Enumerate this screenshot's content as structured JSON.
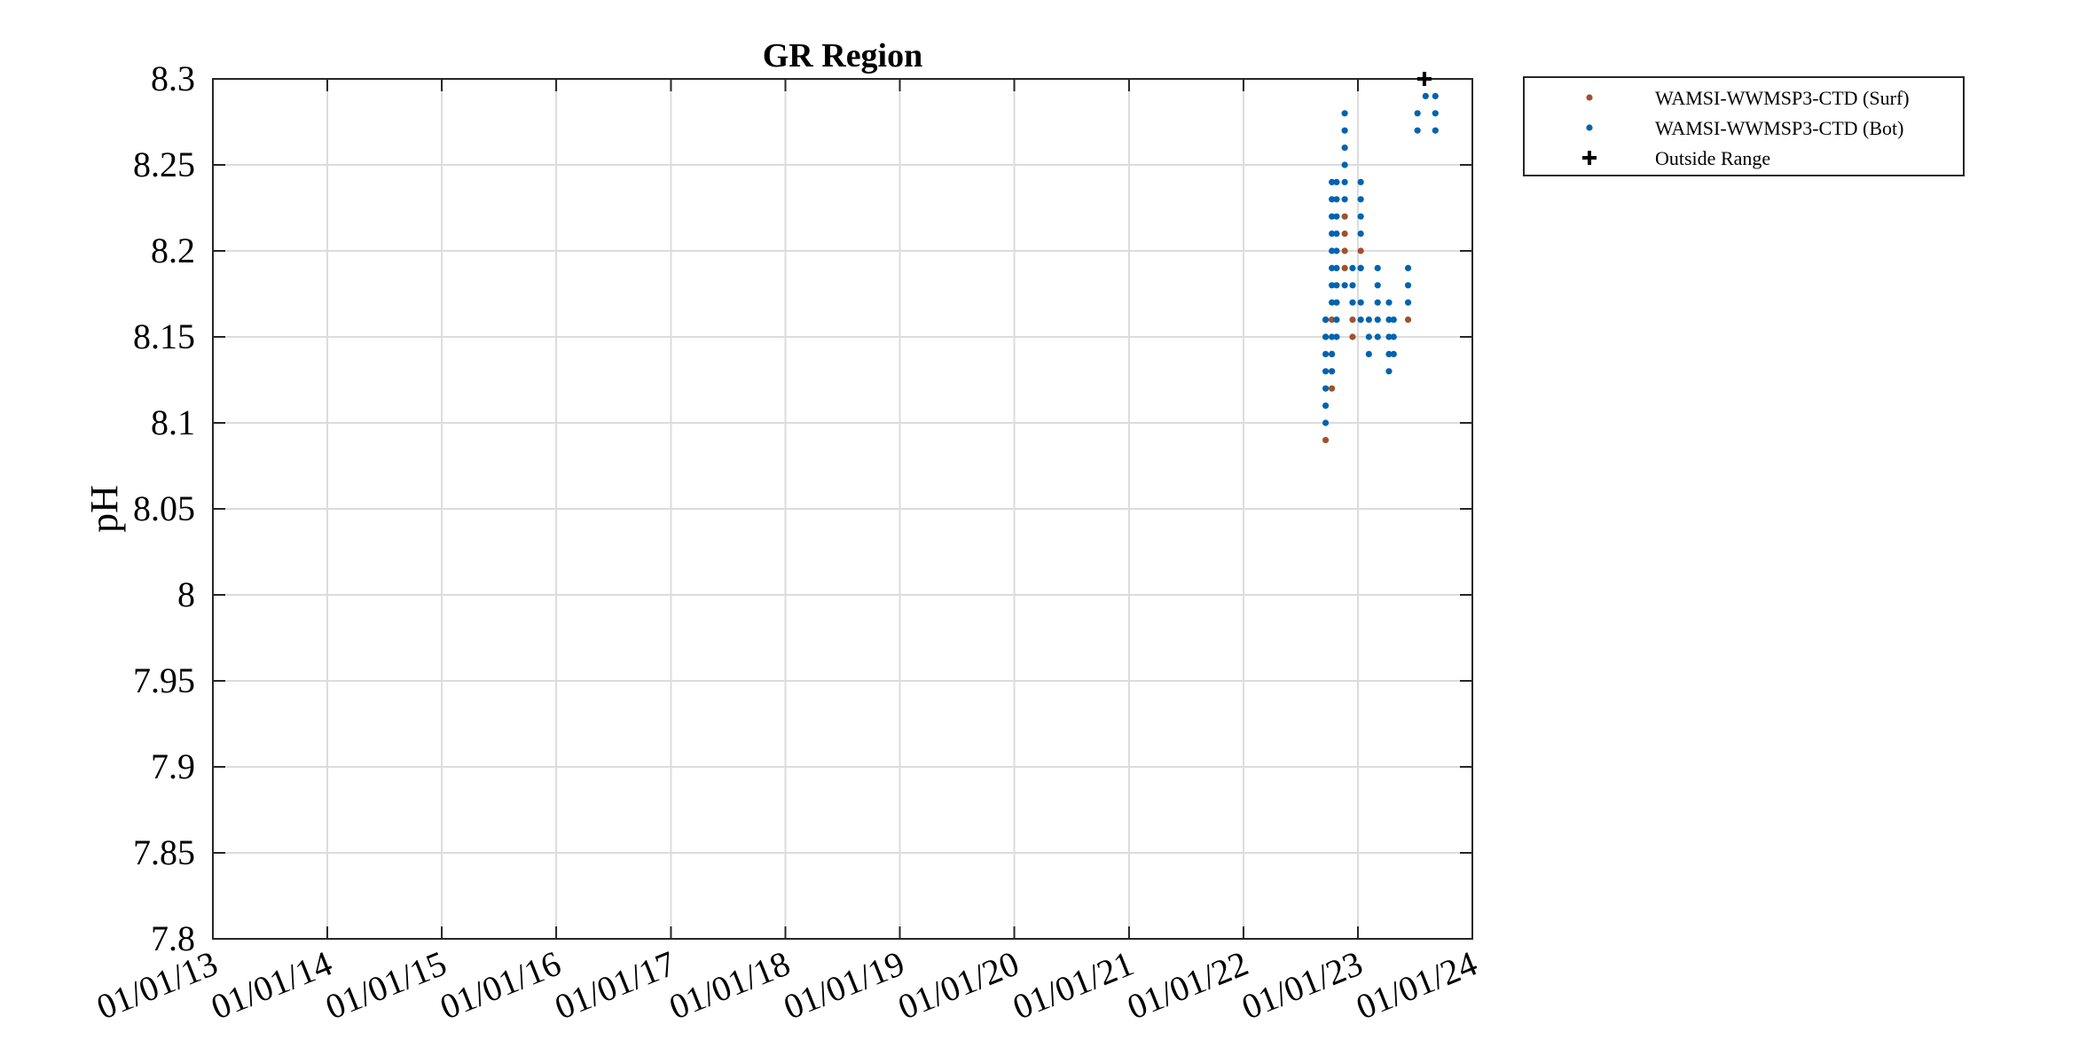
{
  "chart_data": {
    "type": "scatter",
    "title": "GR Region",
    "ylabel": "pH",
    "xlabel": "",
    "xlim": [
      "2013-01-01",
      "2024-01-01"
    ],
    "ylim": [
      7.8,
      8.3
    ],
    "grid": true,
    "legend_placement": "outside-top-right",
    "x_tick_labels": [
      "01/01/13",
      "01/01/14",
      "01/01/15",
      "01/01/16",
      "01/01/17",
      "01/01/18",
      "01/01/19",
      "01/01/20",
      "01/01/21",
      "01/01/22",
      "01/01/23",
      "01/01/24"
    ],
    "x_tick_dates": [
      "2013-01-01",
      "2014-01-01",
      "2015-01-01",
      "2016-01-01",
      "2017-01-01",
      "2018-01-01",
      "2019-01-01",
      "2020-01-01",
      "2021-01-01",
      "2022-01-01",
      "2023-01-01",
      "2024-01-01"
    ],
    "y_tick_labels": [
      "7.8",
      "7.85",
      "7.9",
      "7.95",
      "8",
      "8.05",
      "8.1",
      "8.15",
      "8.2",
      "8.25",
      "8.3"
    ],
    "y_ticks": [
      7.8,
      7.85,
      7.9,
      7.95,
      8.0,
      8.05,
      8.1,
      8.15,
      8.2,
      8.25,
      8.3
    ],
    "series": [
      {
        "name": "WAMSI-WWMSP3-CTD (Surf)",
        "color": "#A0522D",
        "marker": "dot",
        "points": [
          [
            "2022-09-20",
            8.09
          ],
          [
            "2022-09-20",
            8.15
          ],
          [
            "2022-09-20",
            8.16
          ],
          [
            "2022-10-10",
            8.12
          ],
          [
            "2022-10-10",
            8.13
          ],
          [
            "2022-10-10",
            8.14
          ],
          [
            "2022-10-10",
            8.16
          ],
          [
            "2022-11-20",
            8.19
          ],
          [
            "2022-11-20",
            8.2
          ],
          [
            "2022-11-20",
            8.21
          ],
          [
            "2022-11-20",
            8.22
          ],
          [
            "2022-12-15",
            8.15
          ],
          [
            "2022-12-15",
            8.16
          ],
          [
            "2023-01-10",
            8.19
          ],
          [
            "2023-01-10",
            8.2
          ],
          [
            "2023-06-10",
            8.16
          ]
        ]
      },
      {
        "name": "WAMSI-WWMSP3-CTD (Bot)",
        "color": "#0063B0",
        "marker": "dot",
        "points": [
          [
            "2022-09-20",
            8.1
          ],
          [
            "2022-09-20",
            8.11
          ],
          [
            "2022-09-20",
            8.12
          ],
          [
            "2022-09-20",
            8.13
          ],
          [
            "2022-09-20",
            8.14
          ],
          [
            "2022-09-20",
            8.15
          ],
          [
            "2022-09-20",
            8.16
          ],
          [
            "2022-10-10",
            8.13
          ],
          [
            "2022-10-10",
            8.14
          ],
          [
            "2022-10-10",
            8.15
          ],
          [
            "2022-10-10",
            8.17
          ],
          [
            "2022-10-10",
            8.18
          ],
          [
            "2022-10-10",
            8.19
          ],
          [
            "2022-10-10",
            8.2
          ],
          [
            "2022-10-10",
            8.21
          ],
          [
            "2022-10-10",
            8.22
          ],
          [
            "2022-10-10",
            8.23
          ],
          [
            "2022-10-10",
            8.24
          ],
          [
            "2022-10-25",
            8.15
          ],
          [
            "2022-10-25",
            8.16
          ],
          [
            "2022-10-25",
            8.17
          ],
          [
            "2022-10-25",
            8.18
          ],
          [
            "2022-10-25",
            8.19
          ],
          [
            "2022-10-25",
            8.2
          ],
          [
            "2022-10-25",
            8.21
          ],
          [
            "2022-10-25",
            8.22
          ],
          [
            "2022-10-25",
            8.23
          ],
          [
            "2022-10-25",
            8.24
          ],
          [
            "2022-11-20",
            8.18
          ],
          [
            "2022-11-20",
            8.23
          ],
          [
            "2022-11-20",
            8.24
          ],
          [
            "2022-11-20",
            8.25
          ],
          [
            "2022-11-20",
            8.26
          ],
          [
            "2022-11-20",
            8.27
          ],
          [
            "2022-11-20",
            8.28
          ],
          [
            "2022-12-15",
            8.17
          ],
          [
            "2022-12-15",
            8.18
          ],
          [
            "2022-12-15",
            8.19
          ],
          [
            "2023-01-10",
            8.16
          ],
          [
            "2023-01-10",
            8.17
          ],
          [
            "2023-01-10",
            8.19
          ],
          [
            "2023-01-10",
            8.21
          ],
          [
            "2023-01-10",
            8.22
          ],
          [
            "2023-01-10",
            8.23
          ],
          [
            "2023-01-10",
            8.24
          ],
          [
            "2023-02-05",
            8.14
          ],
          [
            "2023-02-05",
            8.15
          ],
          [
            "2023-02-05",
            8.16
          ],
          [
            "2023-03-05",
            8.15
          ],
          [
            "2023-03-05",
            8.16
          ],
          [
            "2023-03-05",
            8.17
          ],
          [
            "2023-03-05",
            8.18
          ],
          [
            "2023-03-05",
            8.19
          ],
          [
            "2023-04-10",
            8.13
          ],
          [
            "2023-04-10",
            8.14
          ],
          [
            "2023-04-10",
            8.15
          ],
          [
            "2023-04-10",
            8.16
          ],
          [
            "2023-04-10",
            8.17
          ],
          [
            "2023-04-25",
            8.14
          ],
          [
            "2023-04-25",
            8.15
          ],
          [
            "2023-04-25",
            8.16
          ],
          [
            "2023-06-10",
            8.17
          ],
          [
            "2023-06-10",
            8.18
          ],
          [
            "2023-06-10",
            8.19
          ],
          [
            "2023-07-10",
            8.27
          ],
          [
            "2023-07-10",
            8.28
          ],
          [
            "2023-08-05",
            8.29
          ],
          [
            "2023-09-05",
            8.27
          ],
          [
            "2023-09-05",
            8.28
          ],
          [
            "2023-09-05",
            8.29
          ]
        ]
      },
      {
        "name": "Outside Range",
        "color": "#000000",
        "marker": "plus",
        "points": [
          [
            "2023-08-01",
            8.3
          ]
        ]
      }
    ]
  }
}
